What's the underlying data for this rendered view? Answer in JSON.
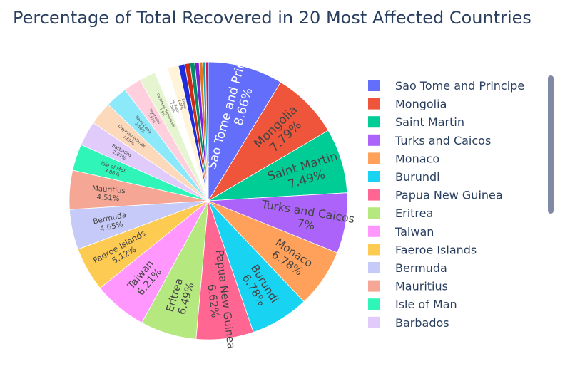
{
  "chart_data": {
    "type": "pie",
    "title": "Percentage of Total Recovered in 20 Most Affected Countries",
    "legend_position": "right",
    "slices": [
      {
        "label": "Sao Tome and Principe",
        "value": 8.66,
        "text": "8.66%",
        "color": "#636efa",
        "text_color": "#ffffff"
      },
      {
        "label": "Mongolia",
        "value": 7.79,
        "text": "7.79%",
        "color": "#EF553B",
        "text_color": "#444444"
      },
      {
        "label": "Saint Martin",
        "value": 7.49,
        "text": "7.49%",
        "color": "#00cc96",
        "text_color": "#444444"
      },
      {
        "label": "Turks and Caicos",
        "value": 7.0,
        "text": "7%",
        "color": "#ab63fa",
        "text_color": "#444444"
      },
      {
        "label": "Monaco",
        "value": 6.78,
        "text": "6.78%",
        "color": "#FFA15A",
        "text_color": "#444444"
      },
      {
        "label": "Burundi",
        "value": 6.78,
        "text": "6.78%",
        "color": "#19d3f3",
        "text_color": "#444444"
      },
      {
        "label": "Papua New Guinea",
        "value": 6.62,
        "text": "6.62%",
        "color": "#FF6692",
        "text_color": "#444444"
      },
      {
        "label": "Eritrea",
        "value": 6.49,
        "text": "6.49%",
        "color": "#B6E880",
        "text_color": "#444444"
      },
      {
        "label": "Taiwan",
        "value": 6.21,
        "text": "6.21%",
        "color": "#FF97FF",
        "text_color": "#444444"
      },
      {
        "label": "Faeroe Islands",
        "value": 5.12,
        "text": "5.12%",
        "color": "#FECB52",
        "text_color": "#444444"
      },
      {
        "label": "Bermuda",
        "value": 4.65,
        "text": "4.65%",
        "color": "#c6caf8",
        "text_color": "#444444"
      },
      {
        "label": "Mauritius",
        "value": 4.51,
        "text": "4.51%",
        "color": "#F6A694",
        "text_color": "#444444"
      },
      {
        "label": "Isle of Man",
        "value": 3.06,
        "text": "3.06%",
        "color": "#2ff5b8",
        "text_color": "#444444"
      },
      {
        "label": "Barbados",
        "value": 2.87,
        "text": "2.87%",
        "color": "#e0cbfb",
        "text_color": "#444444"
      },
      {
        "label": "Cayman Islands",
        "value": 2.69,
        "text": "2.69%",
        "color": "#fdd9bb",
        "text_color": "#444444"
      },
      {
        "label": "Saint Lucia",
        "value": 2.56,
        "text": "2.56%",
        "color": "#8ce9f9",
        "text_color": "#444444"
      },
      {
        "label": "Seychelles",
        "value": 2.03,
        "text": "2.03%",
        "color": "#ffcfdd",
        "text_color": "#444444"
      },
      {
        "label": "Caribbean Netherlands",
        "value": 1.9,
        "text": "1.9%",
        "color": "#e4f5cf",
        "text_color": "#444444"
      },
      {
        "label": "St. Barth",
        "value": 1.51,
        "text": "1.51%",
        "color": "#ffffff",
        "text_color": "#444444"
      },
      {
        "label": "Brunei",
        "value": 1.27,
        "text": "1.27%",
        "color": "#fff3d9",
        "text_color": "#444444"
      },
      {
        "label": "",
        "value": 0.75,
        "text": "",
        "color": "#1f2dd8",
        "text_color": "#ffffff"
      },
      {
        "label": "",
        "value": 0.6,
        "text": "",
        "color": "#cc2a12",
        "text_color": "#ffffff"
      },
      {
        "label": "",
        "value": 0.55,
        "text": "",
        "color": "#068b66",
        "text_color": "#ffffff"
      },
      {
        "label": "",
        "value": 0.5,
        "text": "",
        "color": "#7a22d8",
        "text_color": "#ffffff"
      },
      {
        "label": "",
        "value": 0.4,
        "text": "",
        "color": "#e07a1d",
        "text_color": "#ffffff"
      },
      {
        "label": "",
        "value": 0.35,
        "text": "",
        "color": "#0ea7c4",
        "text_color": "#ffffff"
      },
      {
        "label": "",
        "value": 0.3,
        "text": "",
        "color": "#d11a55",
        "text_color": "#ffffff"
      }
    ],
    "legend": [
      {
        "label": "Sao Tome and Principe",
        "color": "#636efa"
      },
      {
        "label": "Mongolia",
        "color": "#EF553B"
      },
      {
        "label": "Saint Martin",
        "color": "#00cc96"
      },
      {
        "label": "Turks and Caicos",
        "color": "#ab63fa"
      },
      {
        "label": "Monaco",
        "color": "#FFA15A"
      },
      {
        "label": "Burundi",
        "color": "#19d3f3"
      },
      {
        "label": "Papua New Guinea",
        "color": "#FF6692"
      },
      {
        "label": "Eritrea",
        "color": "#B6E880"
      },
      {
        "label": "Taiwan",
        "color": "#FF97FF"
      },
      {
        "label": "Faeroe Islands",
        "color": "#FECB52"
      },
      {
        "label": "Bermuda",
        "color": "#c6caf8"
      },
      {
        "label": "Mauritius",
        "color": "#F6A694"
      },
      {
        "label": "Isle of Man",
        "color": "#2ff5b8"
      },
      {
        "label": "Barbados",
        "color": "#e0cbfb"
      }
    ]
  }
}
